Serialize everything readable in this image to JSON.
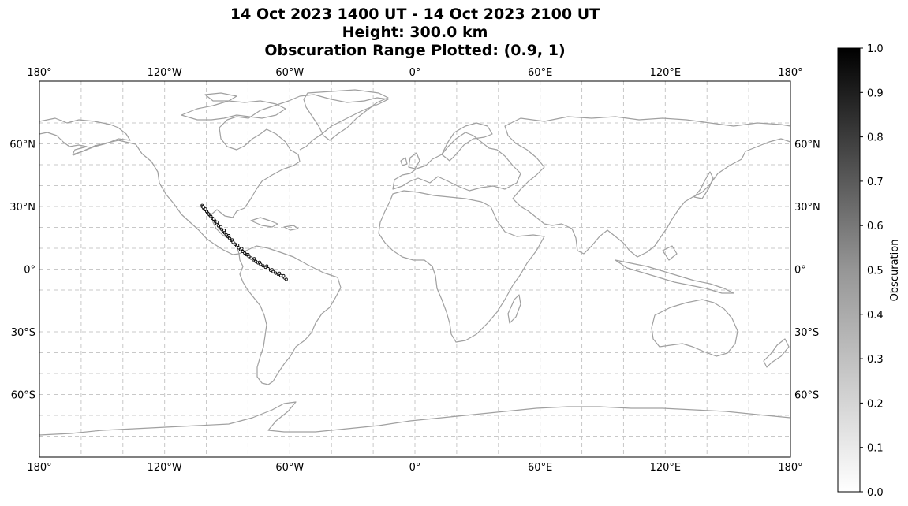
{
  "title": {
    "line1": "14 Oct 2023 1400 UT - 14 Oct 2023 2100 UT",
    "line2": "Height: 300.0 km",
    "line3": "Obscuration Range Plotted: (0.9, 1)"
  },
  "map": {
    "projection": "equirectangular",
    "lon_range": [
      -180,
      180
    ],
    "lat_range": [
      -90,
      90
    ],
    "lon_ticks": [
      -180,
      -120,
      -60,
      0,
      60,
      120,
      180
    ],
    "lon_tick_labels": [
      "180°",
      "120°W",
      "60°W",
      "0°",
      "60°E",
      "120°E",
      "180°"
    ],
    "lat_ticks": [
      60,
      30,
      0,
      -30,
      -60
    ],
    "lat_tick_labels": [
      "60°N",
      "30°N",
      "0°",
      "30°S",
      "60°S"
    ],
    "gridlines": {
      "style": "dashed",
      "color": "#c8c8c8",
      "lon_step": 20,
      "lat_step": 10
    },
    "coastline_color": "#a0a0a0"
  },
  "colorbar": {
    "label": "Obscuration",
    "range": [
      0.0,
      1.0
    ],
    "ticks": [
      "1.0",
      "0.9",
      "0.8",
      "0.7",
      "0.6",
      "0.5",
      "0.4",
      "0.3",
      "0.2",
      "0.1",
      "0.0"
    ],
    "cmap": "Greys"
  },
  "chart_data": {
    "type": "scatter",
    "x_name": "longitude",
    "y_name": "latitude",
    "value_name": "obscuration",
    "points": [
      {
        "lon": -102.0,
        "lat": 30.5,
        "value": 0.905
      },
      {
        "lon": -101.9,
        "lat": 30.0,
        "value": 0.91
      },
      {
        "lon": -101.2,
        "lat": 29.0,
        "value": 0.94
      },
      {
        "lon": -100.8,
        "lat": 28.5,
        "value": 0.96
      },
      {
        "lon": -99.8,
        "lat": 27.6,
        "value": 0.97
      },
      {
        "lon": -99.4,
        "lat": 26.8,
        "value": 0.98
      },
      {
        "lon": -98.5,
        "lat": 26.0,
        "value": 0.98
      },
      {
        "lon": -97.8,
        "lat": 25.2,
        "value": 0.99
      },
      {
        "lon": -97.0,
        "lat": 24.3,
        "value": 0.98
      },
      {
        "lon": -96.2,
        "lat": 23.5,
        "value": 0.99
      },
      {
        "lon": -95.6,
        "lat": 22.7,
        "value": 0.98
      },
      {
        "lon": -95.0,
        "lat": 21.8,
        "value": 0.99
      },
      {
        "lon": -94.2,
        "lat": 20.8,
        "value": 0.97
      },
      {
        "lon": -93.5,
        "lat": 20.0,
        "value": 0.98
      },
      {
        "lon": -92.8,
        "lat": 19.2,
        "value": 0.99
      },
      {
        "lon": -92.0,
        "lat": 18.3,
        "value": 0.96
      },
      {
        "lon": -91.2,
        "lat": 17.4,
        "value": 0.99
      },
      {
        "lon": -90.5,
        "lat": 16.5,
        "value": 0.98
      },
      {
        "lon": -89.6,
        "lat": 15.6,
        "value": 0.97
      },
      {
        "lon": -88.8,
        "lat": 14.7,
        "value": 0.99
      },
      {
        "lon": -88.0,
        "lat": 13.8,
        "value": 0.98
      },
      {
        "lon": -87.2,
        "lat": 12.9,
        "value": 0.96
      },
      {
        "lon": -86.3,
        "lat": 12.0,
        "value": 0.99
      },
      {
        "lon": -85.4,
        "lat": 11.1,
        "value": 0.98
      },
      {
        "lon": -84.5,
        "lat": 10.2,
        "value": 0.97
      },
      {
        "lon": -83.6,
        "lat": 9.4,
        "value": 0.99
      },
      {
        "lon": -82.6,
        "lat": 8.5,
        "value": 0.98
      },
      {
        "lon": -81.6,
        "lat": 7.7,
        "value": 0.97
      },
      {
        "lon": -80.6,
        "lat": 6.9,
        "value": 0.99
      },
      {
        "lon": -79.6,
        "lat": 6.1,
        "value": 0.98
      },
      {
        "lon": -78.5,
        "lat": 5.3,
        "value": 0.96
      },
      {
        "lon": -77.4,
        "lat": 4.5,
        "value": 0.99
      },
      {
        "lon": -76.3,
        "lat": 3.7,
        "value": 0.98
      },
      {
        "lon": -75.2,
        "lat": 3.0,
        "value": 0.97
      },
      {
        "lon": -74.0,
        "lat": 2.3,
        "value": 0.99
      },
      {
        "lon": -72.8,
        "lat": 1.6,
        "value": 0.98
      },
      {
        "lon": -71.6,
        "lat": 0.9,
        "value": 0.97
      },
      {
        "lon": -70.4,
        "lat": 0.2,
        "value": 0.99
      },
      {
        "lon": -69.2,
        "lat": -0.5,
        "value": 0.98
      },
      {
        "lon": -68.0,
        "lat": -1.2,
        "value": 0.96
      },
      {
        "lon": -66.8,
        "lat": -1.9,
        "value": 0.97
      },
      {
        "lon": -65.5,
        "lat": -2.5,
        "value": 0.95
      },
      {
        "lon": -64.3,
        "lat": -3.1,
        "value": 0.94
      },
      {
        "lon": -63.2,
        "lat": -3.7,
        "value": 0.93
      },
      {
        "lon": -62.3,
        "lat": -4.3,
        "value": 0.92
      },
      {
        "lon": -61.7,
        "lat": -4.9,
        "value": 0.91
      },
      {
        "lon": -101.5,
        "lat": 29.6,
        "value": 0.93
      },
      {
        "lon": -100.4,
        "lat": 28.8,
        "value": 0.95
      },
      {
        "lon": -98.9,
        "lat": 26.4,
        "value": 0.97
      },
      {
        "lon": -96.5,
        "lat": 24.0,
        "value": 0.98
      },
      {
        "lon": -94.8,
        "lat": 22.5,
        "value": 0.97
      },
      {
        "lon": -93.0,
        "lat": 20.3,
        "value": 0.98
      },
      {
        "lon": -91.5,
        "lat": 18.6,
        "value": 0.97
      },
      {
        "lon": -89.2,
        "lat": 16.0,
        "value": 0.98
      },
      {
        "lon": -87.6,
        "lat": 14.0,
        "value": 0.97
      },
      {
        "lon": -85.0,
        "lat": 11.5,
        "value": 0.98
      },
      {
        "lon": -83.0,
        "lat": 9.8,
        "value": 0.97
      },
      {
        "lon": -80.0,
        "lat": 7.0,
        "value": 0.98
      },
      {
        "lon": -77.0,
        "lat": 5.0,
        "value": 0.97
      },
      {
        "lon": -74.5,
        "lat": 3.3,
        "value": 0.98
      },
      {
        "lon": -71.0,
        "lat": 1.5,
        "value": 0.97
      },
      {
        "lon": -68.5,
        "lat": -0.3,
        "value": 0.97
      },
      {
        "lon": -65.0,
        "lat": -2.0,
        "value": 0.95
      },
      {
        "lon": -63.0,
        "lat": -3.2,
        "value": 0.93
      }
    ]
  }
}
